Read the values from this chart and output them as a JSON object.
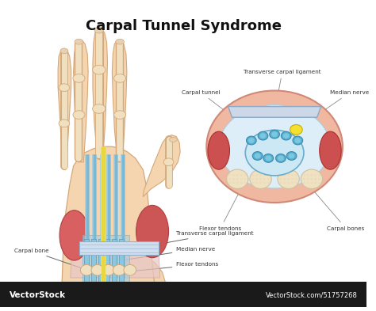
{
  "title": "Carpal Tunnel Syndrome",
  "title_fontsize": 13,
  "title_fontweight": "bold",
  "background_color": "#ffffff",
  "watermark_text": "VectorStock",
  "watermark_url": "VectorStock.com/51757268",
  "watermark_bg": "#1a1a1a",
  "watermark_color": "#ffffff",
  "skin_color": "#f5d5b0",
  "skin_outline": "#d4a87a",
  "bone_color": "#f0e0c0",
  "tendon_color": "#9fcde0",
  "nerve_color": "#f0dc60",
  "muscle_color_l": "#d96060",
  "muscle_color_r": "#cc5555",
  "ligament_color": "#d0dff0",
  "ligament_pink": "#e8c8c8",
  "cross_outer_color": "#f0b8a0",
  "cross_skin_color": "#f5d5b0",
  "cross_inner_bg": "#cce8f4",
  "cross_tendon_fill": "#5aabcf",
  "cross_tendon_outline": "#3a8aaf",
  "cross_bone_color": "#f0e2c0",
  "cross_bone_outline": "#d0c0a0",
  "cross_nerve_color": "#f5e030",
  "cross_nerve_outline": "#c0b000",
  "cross_muscle_color": "#cc5050",
  "cross_muscle_outline": "#aa3030",
  "cross_ligament_color": "#ccd8e8",
  "ann_color": "#333333",
  "ann_fontsize": 5.2
}
